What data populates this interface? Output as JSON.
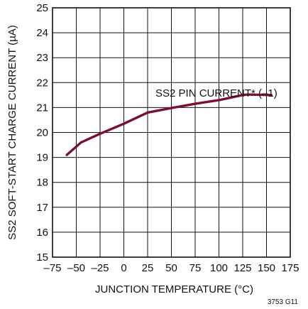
{
  "chart_data": {
    "type": "line",
    "title": "",
    "xlabel": "JUNCTION TEMPERATURE (°C)",
    "ylabel": "SS2 SOFT-START CHARGE CURRENT (µA)",
    "xlim": [
      -75,
      175
    ],
    "ylim": [
      15,
      25
    ],
    "xticks": [
      -75,
      -50,
      -25,
      0,
      25,
      50,
      75,
      100,
      125,
      150,
      175
    ],
    "xtick_labels": [
      "–75",
      "–50",
      "–25",
      "0",
      "25",
      "50",
      "75",
      "100",
      "125",
      "150",
      "175"
    ],
    "yticks": [
      15,
      16,
      17,
      18,
      19,
      20,
      21,
      22,
      23,
      24,
      25
    ],
    "ytick_labels": [
      "15",
      "16",
      "17",
      "18",
      "19",
      "20",
      "21",
      "22",
      "23",
      "24",
      "25"
    ],
    "grid": true,
    "series": [
      {
        "name": "SS2 PIN CURRENT* (–1)",
        "color": "#7a1030",
        "x": [
          -60,
          -45,
          -25,
          0,
          25,
          50,
          75,
          100,
          125,
          130,
          155
        ],
        "y": [
          19.1,
          19.6,
          19.95,
          20.35,
          20.8,
          20.98,
          21.15,
          21.3,
          21.5,
          21.52,
          21.5
        ]
      }
    ],
    "annotation": "SS2 PIN CURRENT* (–1)",
    "footnote": "3753 G11"
  }
}
